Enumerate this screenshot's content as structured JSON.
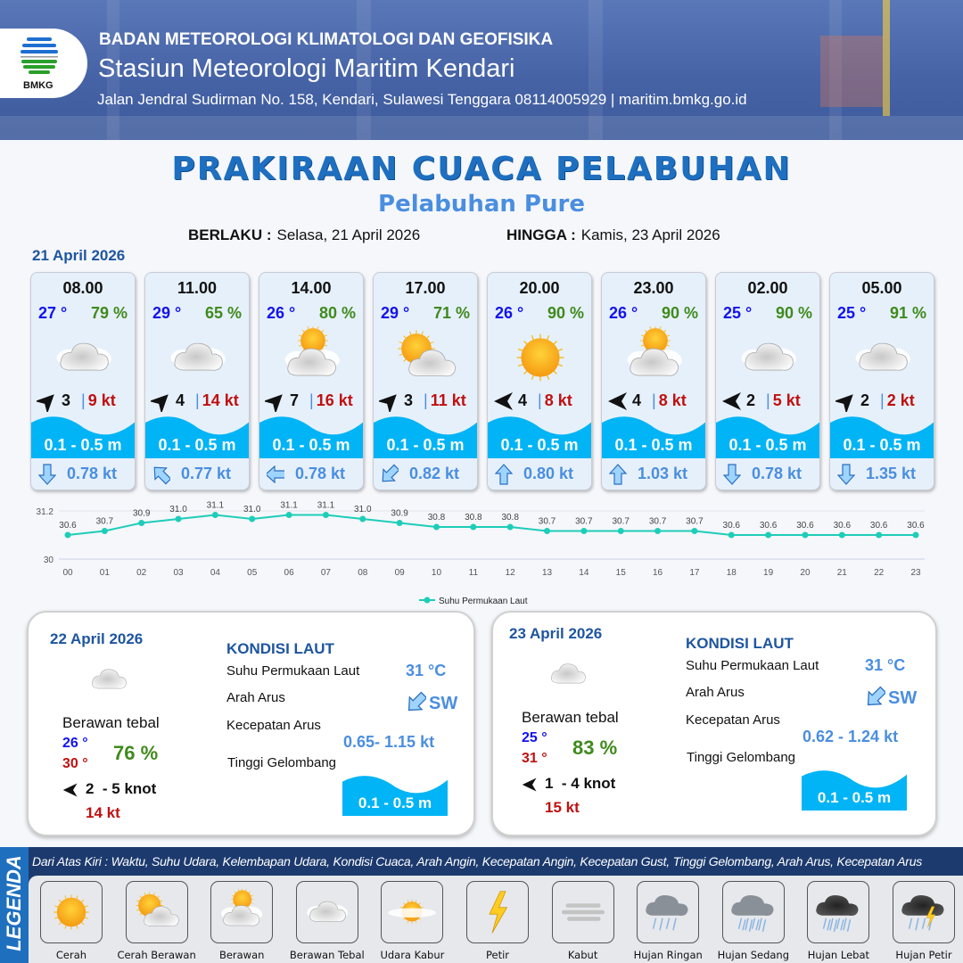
{
  "header": {
    "agency": "BADAN METEOROLOGI KLIMATOLOGI DAN GEOFISIKA",
    "station": "Stasiun Meteorologi Maritim Kendari",
    "contact": "Jalan Jendral Sudirman No. 158, Kendari, Sulawesi Tenggara  08114005929 | maritim.bmkg.go.id",
    "logo_text": "BMKG"
  },
  "title": "PRAKIRAAN CUACA PELABUHAN",
  "subtitle": "Pelabuhan Pure",
  "validity": {
    "from_label": "BERLAKU :",
    "from": "Selasa, 21 April 2026",
    "to_label": "HINGGA :",
    "to": "Kamis, 23 April 2026"
  },
  "day1": {
    "date": "21 April 2026",
    "forecasts": [
      {
        "time": "08.00",
        "temp": "27 °",
        "humidity": "79 %",
        "weather": "berawan-tebal",
        "wind_dir": "NE",
        "wind_speed": "3",
        "gust": "9 kt",
        "wave": "0.1 - 0.5 m",
        "current_dir": "S",
        "current_speed": "0.78 kt"
      },
      {
        "time": "11.00",
        "temp": "29 °",
        "humidity": "65 %",
        "weather": "berawan-tebal",
        "wind_dir": "NE",
        "wind_speed": "4",
        "gust": "14 kt",
        "wave": "0.1 - 0.5 m",
        "current_dir": "NW",
        "current_speed": "0.77 kt"
      },
      {
        "time": "14.00",
        "temp": "26 °",
        "humidity": "80 %",
        "weather": "berawan",
        "wind_dir": "NE",
        "wind_speed": "7",
        "gust": "16 kt",
        "wave": "0.1 - 0.5 m",
        "current_dir": "W",
        "current_speed": "0.78 kt"
      },
      {
        "time": "17.00",
        "temp": "29 °",
        "humidity": "71 %",
        "weather": "cerah-berawan",
        "wind_dir": "NE",
        "wind_speed": "3",
        "gust": "11 kt",
        "wave": "0.1 - 0.5 m",
        "current_dir": "SW",
        "current_speed": "0.82 kt"
      },
      {
        "time": "20.00",
        "temp": "26 °",
        "humidity": "90 %",
        "weather": "cerah",
        "wind_dir": "E",
        "wind_speed": "4",
        "gust": "8 kt",
        "wave": "0.1 - 0.5 m",
        "current_dir": "N",
        "current_speed": "0.80 kt"
      },
      {
        "time": "23.00",
        "temp": "26 °",
        "humidity": "90 %",
        "weather": "berawan",
        "wind_dir": "E",
        "wind_speed": "4",
        "gust": "8 kt",
        "wave": "0.1 - 0.5 m",
        "current_dir": "N",
        "current_speed": "1.03 kt"
      },
      {
        "time": "02.00",
        "temp": "25 °",
        "humidity": "90 %",
        "weather": "berawan-tebal",
        "wind_dir": "E",
        "wind_speed": "2",
        "gust": "5 kt",
        "wave": "0.1 - 0.5 m",
        "current_dir": "S",
        "current_speed": "0.78 kt"
      },
      {
        "time": "05.00",
        "temp": "25 °",
        "humidity": "91 %",
        "weather": "berawan-tebal",
        "wind_dir": "NE",
        "wind_speed": "2",
        "gust": "2 kt",
        "wave": "0.1 - 0.5 m",
        "current_dir": "S",
        "current_speed": "1.35 kt"
      }
    ]
  },
  "chart_data": {
    "type": "line",
    "categories": [
      "00",
      "01",
      "02",
      "03",
      "04",
      "05",
      "06",
      "07",
      "08",
      "09",
      "10",
      "11",
      "12",
      "13",
      "14",
      "15",
      "16",
      "17",
      "18",
      "19",
      "20",
      "21",
      "22",
      "23"
    ],
    "series": [
      {
        "name": "Suhu Permukaan Laut",
        "values": [
          30.6,
          30.7,
          30.9,
          31.0,
          31.1,
          31.0,
          31.1,
          31.1,
          31.0,
          30.9,
          30.8,
          30.8,
          30.8,
          30.7,
          30.7,
          30.7,
          30.7,
          30.7,
          30.6,
          30.6,
          30.6,
          30.6,
          30.6,
          30.6
        ]
      }
    ],
    "yticks": [
      "31.2",
      "30"
    ],
    "ylim": [
      30,
      31.2
    ],
    "legend": "bottom-center",
    "color": "#1ecdb8"
  },
  "days": [
    {
      "date": "22 April 2026",
      "weather": "Berawan tebal",
      "tmin": "26 °",
      "tmax": "30 °",
      "humidity": "76 %",
      "wind": "2  - 5 knot",
      "gust": "14 kt",
      "sea_title": "KONDISI LAUT",
      "sst_label": "Suhu Permukaan Laut",
      "sst": "31 °C",
      "cur_dir_label": "Arah Arus",
      "cur_dir": "SW",
      "cur_speed_label": "Kecepatan Arus",
      "cur_speed": "0.65- 1.15 kt",
      "wave_label": "Tinggi Gelombang",
      "wave": "0.1 - 0.5 m"
    },
    {
      "date": "23 April 2026",
      "weather": "Berawan tebal",
      "tmin": "25 °",
      "tmax": "31 °",
      "humidity": "83 %",
      "wind": "1  - 4 knot",
      "gust": "15 kt",
      "sea_title": "KONDISI LAUT",
      "sst_label": "Suhu Permukaan Laut",
      "sst": "31 °C",
      "cur_dir_label": "Arah Arus",
      "cur_dir": "SW",
      "cur_speed_label": "Kecepatan Arus",
      "cur_speed": "0.62 - 1.24 kt",
      "wave_label": "Tinggi Gelombang",
      "wave": "0.1 - 0.5 m"
    }
  ],
  "legend": {
    "label": "LEGENDA",
    "description": "Dari Atas Kiri : Waktu, Suhu Udara, Kelembapan Udara, Kondisi Cuaca, Arah Angin, Kecepatan Angin, Kecepatan Gust, Tinggi Gelombang, Arah Arus, Kecepatan Arus",
    "items": [
      {
        "label": "Cerah",
        "icon": "cerah"
      },
      {
        "label": "Cerah Berawan",
        "icon": "cerah-berawan"
      },
      {
        "label": "Berawan",
        "icon": "berawan"
      },
      {
        "label": "Berawan Tebal",
        "icon": "berawan-tebal"
      },
      {
        "label": "Udara Kabur",
        "icon": "udara-kabur"
      },
      {
        "label": "Petir",
        "icon": "petir"
      },
      {
        "label": "Kabut",
        "icon": "kabut"
      },
      {
        "label": "Hujan Ringan",
        "icon": "hujan-ringan"
      },
      {
        "label": "Hujan Sedang",
        "icon": "hujan-sedang"
      },
      {
        "label": "Hujan Lebat",
        "icon": "hujan-lebat"
      },
      {
        "label": "Hujan Petir",
        "icon": "hujan-petir"
      }
    ]
  },
  "colors": {
    "primary": "#1e6fc0",
    "wave": "#00b4f5",
    "temp": "#1212f0",
    "humidity": "#3f8a1c",
    "gust": "#c01010",
    "current": "#4a8ee0"
  }
}
